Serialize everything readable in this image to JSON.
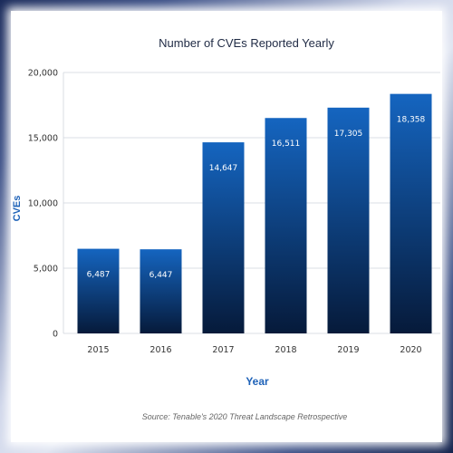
{
  "chart_data": {
    "type": "bar",
    "title": "Number of CVEs Reported Yearly",
    "xlabel": "Year",
    "ylabel": "CVEs",
    "categories": [
      "2015",
      "2016",
      "2017",
      "2018",
      "2019",
      "2020"
    ],
    "values": [
      6487,
      6447,
      14647,
      16511,
      17305,
      18358
    ],
    "value_labels": [
      "6,487",
      "6,447",
      "14,647",
      "16,511",
      "17,305",
      "18,358"
    ],
    "ylim": [
      0,
      20000
    ],
    "yticks": [
      0,
      5000,
      10000,
      15000,
      20000
    ],
    "ytick_labels": [
      "0",
      "5,000",
      "10,000",
      "15,000",
      "20,000"
    ],
    "grid": false,
    "bar_color_top": "#1565c0",
    "bar_color_bottom": "#061a3a",
    "source": "Source: Tenable's 2020 Threat Landscape Retrospective"
  }
}
